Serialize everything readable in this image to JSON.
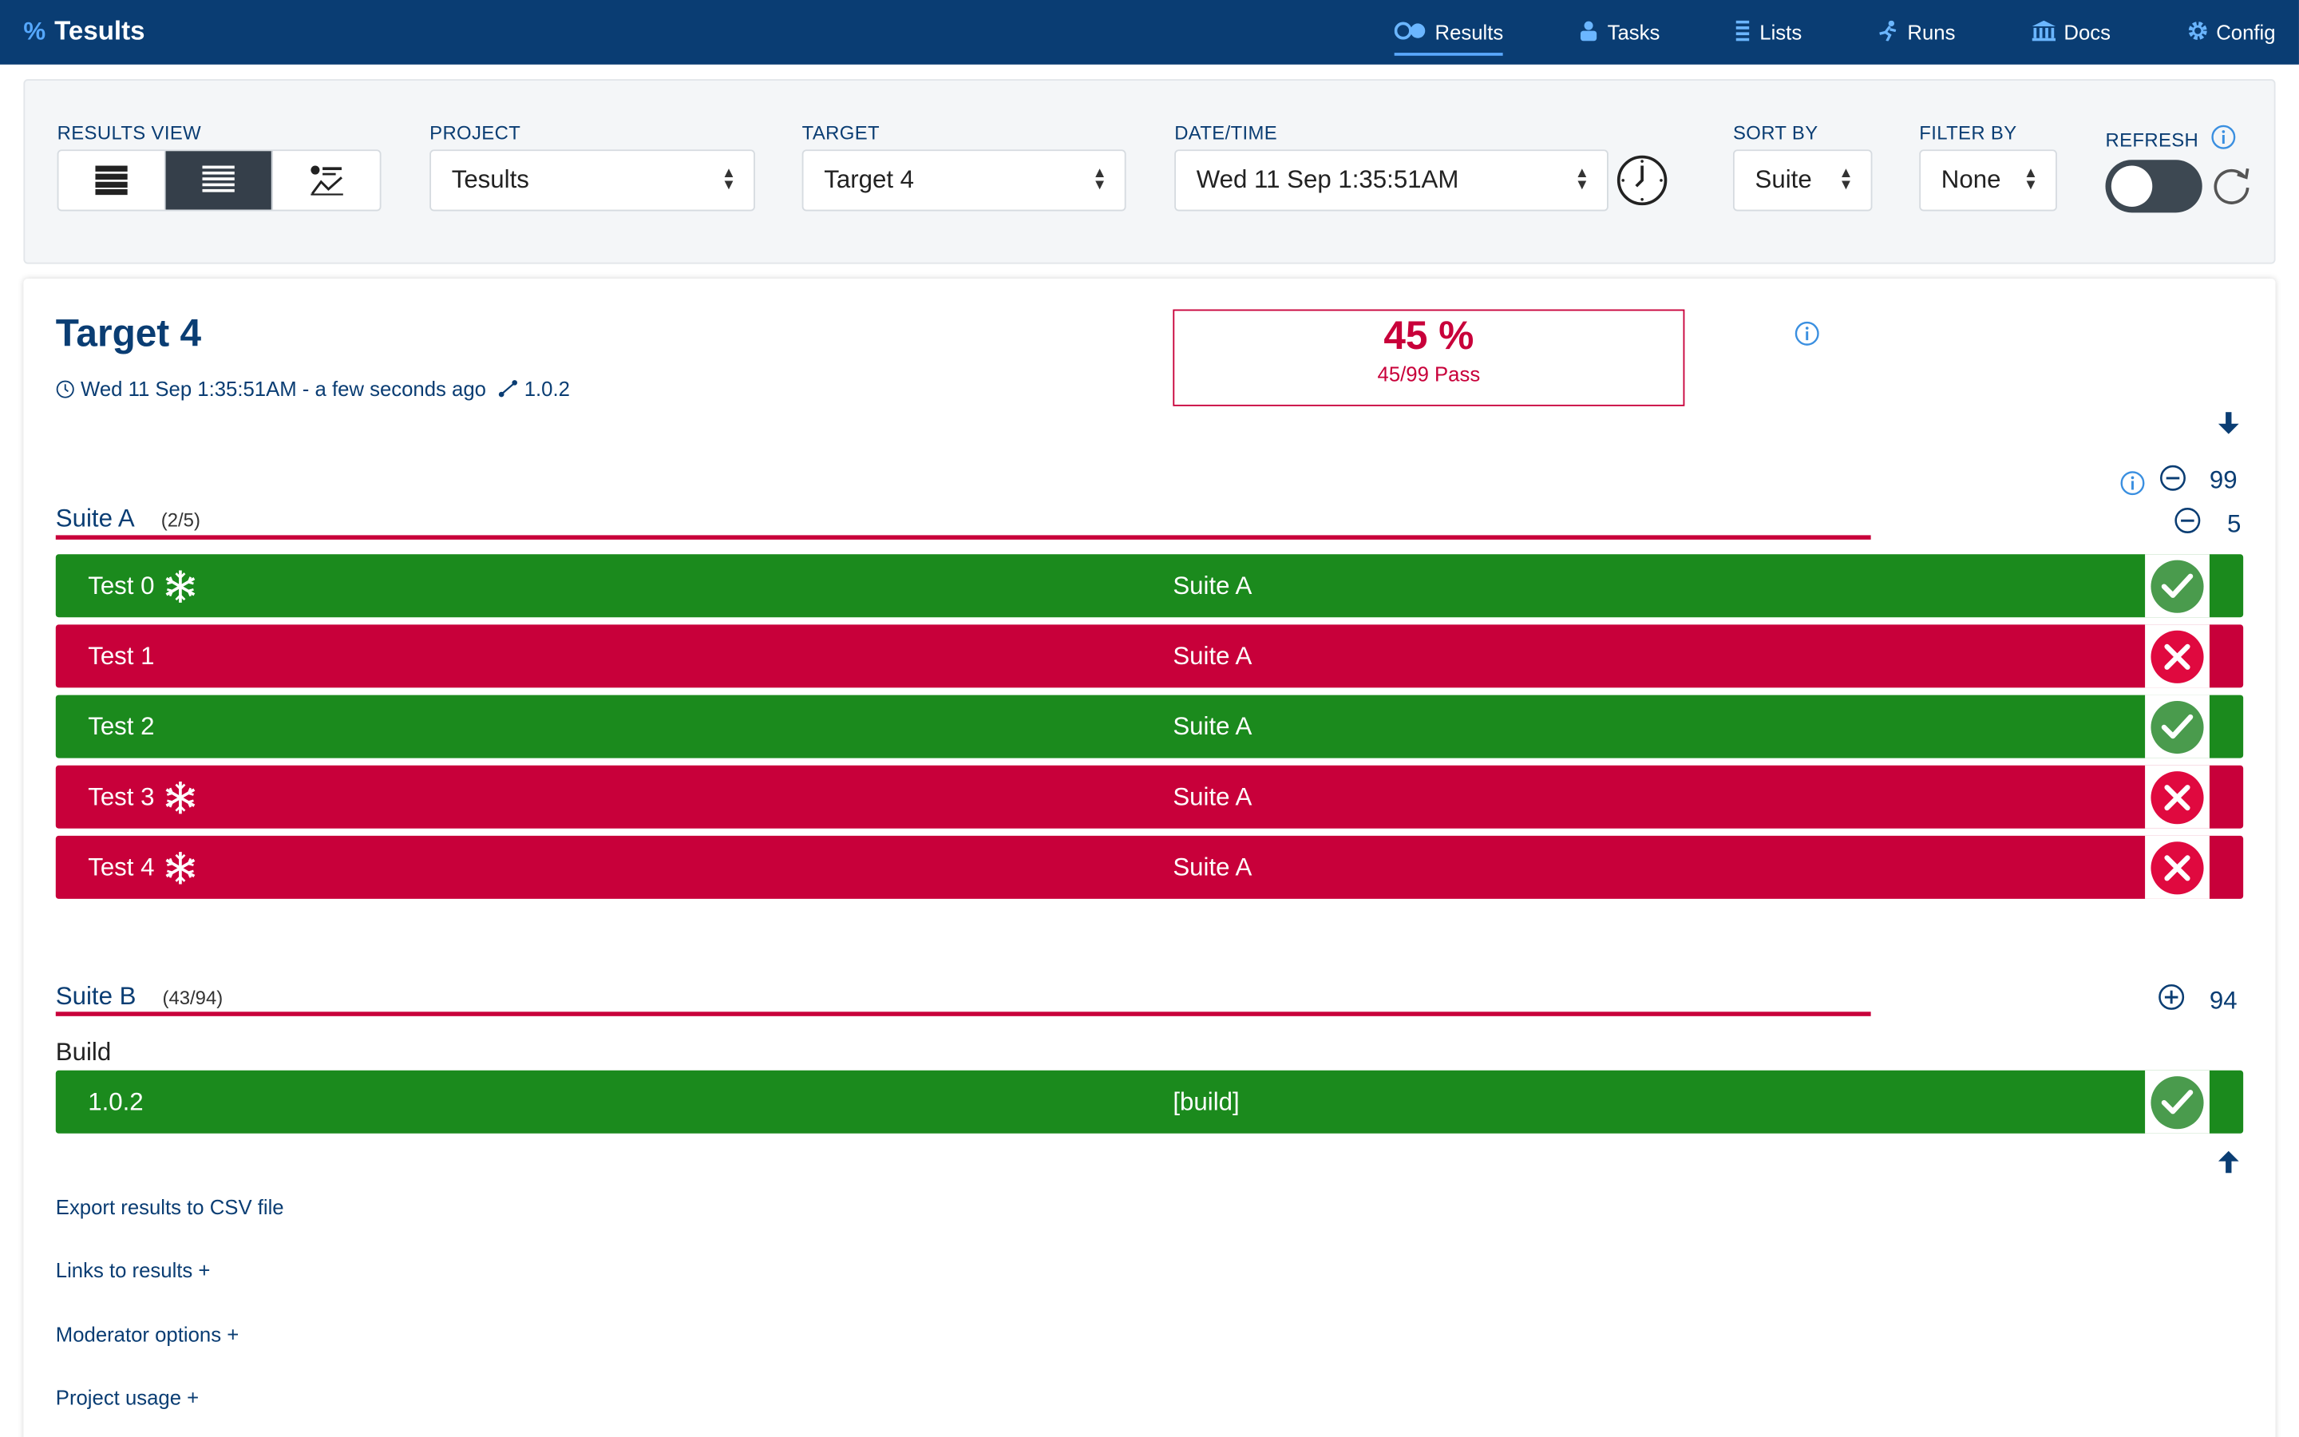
{
  "app": {
    "brand_icon": "%",
    "brand_name": "Tesults"
  },
  "nav": [
    {
      "label": "Results",
      "icon": "results-icon",
      "active": true
    },
    {
      "label": "Tasks",
      "icon": "tasks-icon",
      "active": false
    },
    {
      "label": "Lists",
      "icon": "lists-icon",
      "active": false
    },
    {
      "label": "Runs",
      "icon": "runs-icon",
      "active": false
    },
    {
      "label": "Docs",
      "icon": "docs-icon",
      "active": false
    },
    {
      "label": "Config",
      "icon": "config-icon",
      "active": false
    }
  ],
  "toolbar": {
    "results_view_label": "RESULTS VIEW",
    "project_label": "PROJECT",
    "project_value": "Tesults",
    "target_label": "TARGET",
    "target_value": "Target 4",
    "datetime_label": "DATE/TIME",
    "datetime_value": "Wed 11 Sep 1:35:51AM",
    "sortby_label": "SORT BY",
    "sortby_value": "Suite",
    "filterby_label": "FILTER BY",
    "filterby_value": "None",
    "refresh_label": "REFRESH"
  },
  "card": {
    "title": "Target 4",
    "meta_time": "Wed 11 Sep 1:35:51AM - a few seconds ago",
    "meta_build": "1.0.2",
    "pass_percent": "45 %",
    "pass_summary": "45/99 Pass",
    "total_count": "99"
  },
  "suites": [
    {
      "name": "Suite A",
      "fraction": "(2/5)",
      "count": "5",
      "expanded": true,
      "tests": [
        {
          "name": "Test 0",
          "suite": "Suite A",
          "result": "pass",
          "flaky": true
        },
        {
          "name": "Test 1",
          "suite": "Suite A",
          "result": "fail",
          "flaky": false
        },
        {
          "name": "Test 2",
          "suite": "Suite A",
          "result": "pass",
          "flaky": false
        },
        {
          "name": "Test 3",
          "suite": "Suite A",
          "result": "fail",
          "flaky": true
        },
        {
          "name": "Test 4",
          "suite": "Suite A",
          "result": "fail",
          "flaky": true
        }
      ]
    },
    {
      "name": "Suite B",
      "fraction": "(43/94)",
      "count": "94",
      "expanded": false,
      "tests": []
    }
  ],
  "build": {
    "label": "Build",
    "name": "1.0.2",
    "suite": "[build]",
    "result": "pass"
  },
  "links": [
    "Export results to CSV file",
    "Links to results +",
    "Moderator options +",
    "Project usage +"
  ],
  "colors": {
    "navbar": "#0a3d73",
    "pass": "#1b8a1d",
    "fail": "#c8003a",
    "accent": "#5aa9ff"
  }
}
